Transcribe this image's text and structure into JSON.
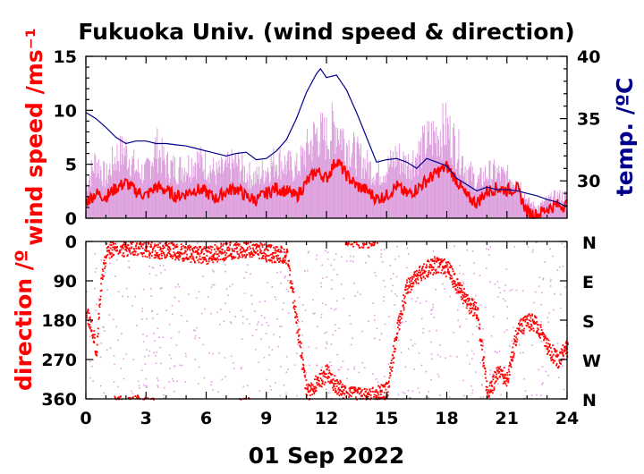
{
  "chart_data": [
    {
      "type": "line",
      "title": "Fukuoka Univ. (wind speed & direction)",
      "ylabel": "wind speed /ms⁻¹",
      "y2label": "temp. /ºC",
      "ylim": [
        0,
        15
      ],
      "y2lim": [
        27,
        40
      ],
      "xlim": [
        0,
        24
      ],
      "yticks": [
        "0",
        "5",
        "10",
        "15"
      ],
      "y2ticks": [
        "30",
        "35",
        "40"
      ],
      "grid": false,
      "colors": {
        "mean_speed": "#ff0000",
        "gust": "#dda0dd",
        "temperature": "#00008b"
      },
      "series": [
        {
          "key": "mean_speed",
          "x": [
            0,
            0.5,
            1,
            1.5,
            2,
            2.5,
            3,
            3.5,
            4,
            4.5,
            5,
            5.5,
            6,
            6.5,
            7,
            7.5,
            8,
            8.5,
            9,
            9.5,
            10,
            10.5,
            11,
            11.5,
            12,
            12.5,
            13,
            13.5,
            14,
            14.5,
            15,
            15.5,
            16,
            16.5,
            17,
            17.5,
            18,
            18.5,
            19,
            19.5,
            20,
            20.5,
            21,
            21.5,
            22,
            22.5,
            23,
            23.5,
            24
          ],
          "values": [
            1.5,
            2.3,
            2.0,
            2.8,
            3.3,
            2.5,
            2.1,
            2.9,
            2.6,
            2.0,
            2.3,
            2.7,
            2.4,
            1.8,
            2.5,
            2.8,
            2.0,
            1.7,
            2.3,
            2.8,
            2.5,
            2.0,
            3.3,
            4.4,
            3.7,
            5.4,
            4.0,
            3.0,
            2.6,
            1.8,
            2.1,
            3.0,
            2.2,
            2.7,
            3.5,
            4.2,
            4.8,
            3.5,
            2.0,
            1.4,
            2.5,
            2.8,
            2.6,
            2.8,
            0.6,
            0.3,
            0.9,
            1.2,
            1.2
          ]
        },
        {
          "key": "gust",
          "x": [
            0,
            0.5,
            1,
            1.5,
            2,
            2.5,
            3,
            3.5,
            4,
            4.5,
            5,
            5.5,
            6,
            6.5,
            7,
            7.5,
            8,
            8.5,
            9,
            9.5,
            10,
            10.5,
            11,
            11.5,
            12,
            12.5,
            13,
            13.5,
            14,
            14.5,
            15,
            15.5,
            16,
            16.5,
            17,
            17.5,
            18,
            18.5,
            19,
            19.5,
            20,
            20.5,
            21,
            21.5,
            22,
            22.5,
            23,
            23.5,
            24
          ],
          "values": [
            3.5,
            6.5,
            4.5,
            7.0,
            7.5,
            5.5,
            5.0,
            8.0,
            6.0,
            5.5,
            5.8,
            6.5,
            6.0,
            5.0,
            5.5,
            6.2,
            5.0,
            4.5,
            5.5,
            6.5,
            6.0,
            5.5,
            7.5,
            9.5,
            9.0,
            10.5,
            8.5,
            7.0,
            6.0,
            5.0,
            5.5,
            7.0,
            6.0,
            7.0,
            8.5,
            9.5,
            10.0,
            8.0,
            5.5,
            4.0,
            5.0,
            5.0,
            4.5,
            4.5,
            2.0,
            1.2,
            2.0,
            2.5,
            2.5
          ]
        },
        {
          "key": "temperature",
          "x": [
            0,
            0.5,
            1,
            1.5,
            2,
            2.5,
            3,
            3.5,
            4,
            4.5,
            5,
            5.5,
            6,
            6.5,
            7,
            7.5,
            8,
            8.5,
            9,
            9.5,
            10,
            10.5,
            11,
            11.5,
            11.7,
            12,
            12.5,
            13,
            13.5,
            14,
            14.5,
            15,
            15.5,
            16,
            16.5,
            17,
            17.5,
            18,
            18.5,
            19,
            19.5,
            20,
            20.5,
            21,
            21.5,
            22,
            22.5,
            23,
            23.5,
            24
          ],
          "values": [
            35.5,
            35.0,
            34.3,
            33.5,
            33.0,
            33.2,
            33.2,
            33.0,
            33.0,
            32.9,
            32.8,
            32.6,
            32.4,
            32.2,
            32.0,
            32.2,
            32.3,
            31.7,
            31.8,
            32.4,
            33.3,
            35.0,
            37.1,
            38.6,
            39.0,
            38.3,
            38.5,
            37.3,
            35.5,
            33.5,
            31.5,
            31.7,
            31.8,
            31.5,
            31.0,
            31.8,
            31.5,
            31.2,
            30.2,
            29.7,
            29.2,
            29.5,
            29.3,
            29.3,
            29.2,
            29.0,
            28.8,
            28.5,
            28.3,
            27.9
          ]
        }
      ]
    },
    {
      "type": "scatter",
      "xlabel": "01 Sep 2022",
      "ylabel": "direction /º",
      "ylim": [
        0,
        360
      ],
      "xlim": [
        0,
        24
      ],
      "xticks": [
        "0",
        "3",
        "6",
        "9",
        "12",
        "15",
        "18",
        "21",
        "24"
      ],
      "yticks": [
        "0",
        "90",
        "180",
        "270",
        "360"
      ],
      "y2ticks": [
        "N",
        "E",
        "S",
        "W",
        "N"
      ],
      "y_reversed": true,
      "grid": false,
      "colors": {
        "mean_direction": "#ff0000",
        "instant_direction": "#dda0dd"
      },
      "series": [
        {
          "key": "mean_direction",
          "x": [
            0,
            0.3,
            0.5,
            0.7,
            1,
            1.5,
            2,
            2.5,
            3,
            4,
            5,
            6,
            7,
            8,
            9,
            10,
            11,
            11.5,
            12,
            12.5,
            13,
            14,
            15,
            15.5,
            16,
            17,
            17.5,
            18,
            18.5,
            19,
            19.5,
            20,
            20.5,
            21,
            21.5,
            22,
            22.5,
            23,
            23.5,
            24
          ],
          "values": [
            160,
            200,
            250,
            110,
            20,
            10,
            15,
            10,
            15,
            20,
            25,
            30,
            20,
            15,
            25,
            30,
            345,
            320,
            300,
            330,
            350,
            355,
            340,
            200,
            100,
            60,
            50,
            60,
            100,
            140,
            160,
            350,
            300,
            310,
            200,
            180,
            190,
            240,
            270,
            240
          ]
        }
      ]
    }
  ]
}
